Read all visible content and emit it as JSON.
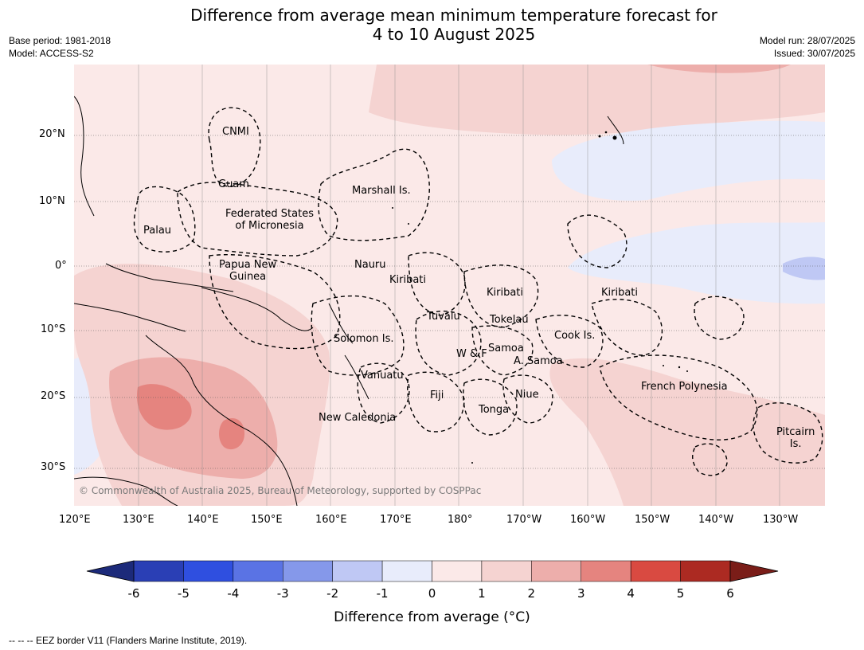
{
  "title_line1": "Difference from average mean minimum temperature forecast for",
  "title_line2": "4 to 10 August 2025",
  "meta_left": [
    "Base period: 1981-2018",
    "Model: ACCESS-S2"
  ],
  "meta_right": [
    "Model run: 28/07/2025",
    "Issued: 30/07/2025"
  ],
  "map": {
    "lat_labels": [
      "20°N",
      "10°N",
      "0°",
      "10°S",
      "20°S",
      "30°S"
    ],
    "lon_labels": [
      "120°E",
      "130°E",
      "140°E",
      "150°E",
      "160°E",
      "170°E",
      "180°",
      "170°W",
      "160°W",
      "150°W",
      "140°W",
      "130°W"
    ],
    "region_labels": [
      "CNMI",
      "Guam",
      "Palau",
      "Federated States\nof Micronesia",
      "Marshall Is.",
      "Papua New\nGuinea",
      "Nauru",
      "Kiribati",
      "Kiribati",
      "Kiribati",
      "Tuvalu",
      "Tokelau",
      "Solomon Is.",
      "Samoa",
      "W & F",
      "A. Samoa",
      "Cook Is.",
      "Vanuatu",
      "Fiji",
      "Niue",
      "Tonga",
      "French Polynesia",
      "New Caledonia",
      "Pitcairn\nIs."
    ],
    "copyright": "© Commonwealth of Australia 2025, Bureau of Meteorology, supported by COSPPac"
  },
  "colorbar": {
    "ticks": [
      "-6",
      "-5",
      "-4",
      "-3",
      "-2",
      "-1",
      "0",
      "1",
      "2",
      "3",
      "4",
      "5",
      "6"
    ],
    "colors": {
      "extend_low": "#1c2a7a",
      "bins": [
        "#2a3fb5",
        "#2f4fe0",
        "#5a73e4",
        "#8598ea",
        "#bfc8f4",
        "#e8ecfb",
        "#fbe9e8",
        "#f5d3d1",
        "#edaeab",
        "#e5847f",
        "#d94a41",
        "#ac2a22"
      ],
      "extend_high": "#7a1d18"
    },
    "label": "Difference from average ($^\\circ$C)",
    "label_display": "Difference from average (°C)"
  },
  "legend_text": "--  --  -- EEZ border V11 (Flanders Marine Institute, 2019)."
}
